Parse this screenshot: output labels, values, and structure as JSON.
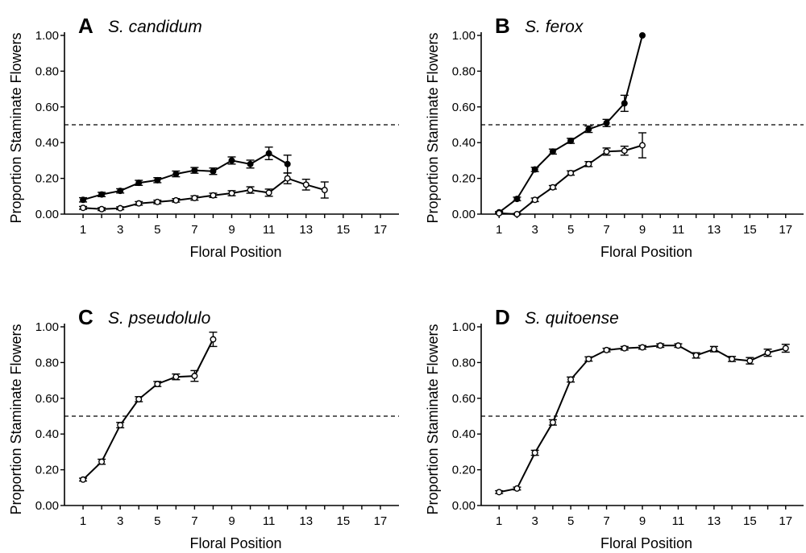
{
  "chart_data": [
    {
      "panel": "A",
      "type": "line",
      "title": "S. candidum",
      "xlabel": "Floral Position",
      "ylabel": "Proportion Staminate Flowers",
      "xlim": [
        0,
        18
      ],
      "ylim": [
        0,
        1
      ],
      "x_ticks": [
        "1",
        "3",
        "5",
        "7",
        "9",
        "11",
        "13",
        "15",
        "17"
      ],
      "y_ticks": [
        "0.00",
        "0.20",
        "0.40",
        "0.60",
        "0.80",
        "1.00"
      ],
      "reference_line": 0.5,
      "grid": false,
      "series": [
        {
          "marker": "filled",
          "x": [
            1,
            2,
            3,
            4,
            5,
            6,
            7,
            8,
            9,
            10,
            11,
            12
          ],
          "y": [
            0.08,
            0.11,
            0.13,
            0.175,
            0.19,
            0.225,
            0.245,
            0.24,
            0.3,
            0.28,
            0.34,
            0.28
          ],
          "err": [
            0.012,
            0.012,
            0.012,
            0.014,
            0.014,
            0.016,
            0.016,
            0.018,
            0.02,
            0.022,
            0.035,
            0.05
          ]
        },
        {
          "marker": "open",
          "x": [
            1,
            2,
            3,
            4,
            5,
            6,
            7,
            8,
            9,
            10,
            11,
            12,
            13,
            14
          ],
          "y": [
            0.035,
            0.028,
            0.033,
            0.06,
            0.068,
            0.077,
            0.09,
            0.105,
            0.117,
            0.135,
            0.12,
            0.2,
            0.165,
            0.135
          ],
          "err": [
            0.008,
            0.008,
            0.008,
            0.01,
            0.01,
            0.01,
            0.012,
            0.012,
            0.014,
            0.018,
            0.02,
            0.03,
            0.03,
            0.045
          ]
        }
      ]
    },
    {
      "panel": "B",
      "type": "line",
      "title": "S. ferox",
      "xlabel": "Floral Position",
      "ylabel": "Proportion Staminate Flowers",
      "xlim": [
        0,
        18
      ],
      "ylim": [
        0,
        1
      ],
      "x_ticks": [
        "1",
        "3",
        "5",
        "7",
        "9",
        "11",
        "13",
        "15",
        "17"
      ],
      "y_ticks": [
        "0.00",
        "0.20",
        "0.40",
        "0.60",
        "0.80",
        "1.00"
      ],
      "reference_line": 0.5,
      "grid": false,
      "series": [
        {
          "marker": "filled",
          "x": [
            1,
            2,
            3,
            4,
            5,
            6,
            7,
            8,
            9
          ],
          "y": [
            0.01,
            0.085,
            0.25,
            0.35,
            0.41,
            0.475,
            0.51,
            0.62,
            1.0
          ],
          "err": [
            0.005,
            0.01,
            0.012,
            0.014,
            0.014,
            0.018,
            0.02,
            0.045,
            0.0
          ]
        },
        {
          "marker": "open",
          "x": [
            1,
            2,
            3,
            4,
            5,
            6,
            7,
            8,
            9
          ],
          "y": [
            0.005,
            0.0,
            0.08,
            0.15,
            0.23,
            0.28,
            0.35,
            0.355,
            0.385
          ],
          "err": [
            0.004,
            0.004,
            0.01,
            0.01,
            0.012,
            0.014,
            0.02,
            0.025,
            0.07
          ]
        }
      ]
    },
    {
      "panel": "C",
      "type": "line",
      "title": "S. pseudolulo",
      "xlabel": "Floral Position",
      "ylabel": "Proportion Staminate Flowers",
      "xlim": [
        0,
        18
      ],
      "ylim": [
        0,
        1
      ],
      "x_ticks": [
        "1",
        "3",
        "5",
        "7",
        "9",
        "11",
        "13",
        "15",
        "17"
      ],
      "y_ticks": [
        "0.00",
        "0.20",
        "0.40",
        "0.60",
        "0.80",
        "1.00"
      ],
      "reference_line": 0.5,
      "grid": false,
      "series": [
        {
          "marker": "open",
          "x": [
            1,
            2,
            3,
            4,
            5,
            6,
            7,
            8
          ],
          "y": [
            0.145,
            0.245,
            0.45,
            0.595,
            0.68,
            0.72,
            0.725,
            0.93
          ],
          "err": [
            0.008,
            0.014,
            0.015,
            0.014,
            0.014,
            0.016,
            0.03,
            0.04
          ]
        }
      ]
    },
    {
      "panel": "D",
      "type": "line",
      "title": "S. quitoense",
      "xlabel": "Floral Position",
      "ylabel": "Proportion Staminate Flowers",
      "xlim": [
        0,
        18
      ],
      "ylim": [
        0,
        1
      ],
      "x_ticks": [
        "1",
        "3",
        "5",
        "7",
        "9",
        "11",
        "13",
        "15",
        "17"
      ],
      "y_ticks": [
        "0.00",
        "0.20",
        "0.40",
        "0.60",
        "0.80",
        "1.00"
      ],
      "reference_line": 0.5,
      "grid": false,
      "series": [
        {
          "marker": "open",
          "x": [
            1,
            2,
            3,
            4,
            5,
            6,
            7,
            8,
            9,
            10,
            11,
            12,
            13,
            14,
            15,
            16,
            17
          ],
          "y": [
            0.075,
            0.095,
            0.295,
            0.465,
            0.705,
            0.82,
            0.87,
            0.88,
            0.885,
            0.895,
            0.895,
            0.84,
            0.875,
            0.82,
            0.81,
            0.855,
            0.88
          ],
          "err": [
            0.008,
            0.008,
            0.014,
            0.015,
            0.014,
            0.012,
            0.01,
            0.01,
            0.01,
            0.01,
            0.01,
            0.015,
            0.015,
            0.014,
            0.018,
            0.02,
            0.022
          ]
        }
      ]
    }
  ]
}
